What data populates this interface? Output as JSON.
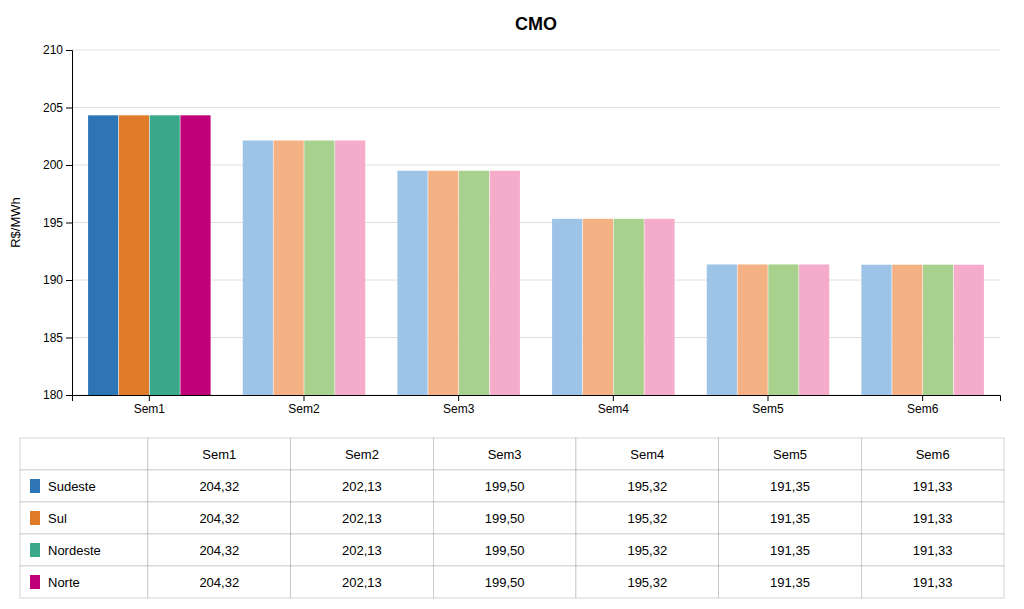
{
  "chart_data": {
    "type": "bar",
    "title": "CMO",
    "ylabel": "R$/MWh",
    "categories": [
      "Sem1",
      "Sem2",
      "Sem3",
      "Sem4",
      "Sem5",
      "Sem6"
    ],
    "series": [
      {
        "name": "Sudeste",
        "color": "#2E75B6",
        "colors": [
          "#2E75B6",
          "#9DC3E6",
          "#9DC3E6",
          "#9DC3E6",
          "#9DC3E6",
          "#9DC3E6"
        ],
        "values": [
          204.32,
          202.13,
          199.5,
          195.32,
          191.35,
          191.33
        ],
        "value_labels": [
          "204,32",
          "202,13",
          "199,50",
          "195,32",
          "191,35",
          "191,33"
        ]
      },
      {
        "name": "Sul",
        "color": "#E07B2A",
        "colors": [
          "#E07B2A",
          "#F4B183",
          "#F4B183",
          "#F4B183",
          "#F4B183",
          "#F4B183"
        ],
        "values": [
          204.32,
          202.13,
          199.5,
          195.32,
          191.35,
          191.33
        ],
        "value_labels": [
          "204,32",
          "202,13",
          "199,50",
          "195,32",
          "191,35",
          "191,33"
        ]
      },
      {
        "name": "Nordeste",
        "color": "#3AA88A",
        "colors": [
          "#3AA88A",
          "#A9D18E",
          "#A9D18E",
          "#A9D18E",
          "#A9D18E",
          "#A9D18E"
        ],
        "values": [
          204.32,
          202.13,
          199.5,
          195.32,
          191.35,
          191.33
        ],
        "value_labels": [
          "204,32",
          "202,13",
          "199,50",
          "195,32",
          "191,35",
          "191,33"
        ]
      },
      {
        "name": "Norte",
        "color": "#C00078",
        "colors": [
          "#C00078",
          "#F4ACCA",
          "#F4ACCA",
          "#F4ACCA",
          "#F4ACCA",
          "#F4ACCA"
        ],
        "values": [
          204.32,
          202.13,
          199.5,
          195.32,
          191.35,
          191.33
        ],
        "value_labels": [
          "204,32",
          "202,13",
          "199,50",
          "195,32",
          "191,35",
          "191,33"
        ]
      }
    ],
    "ylim": [
      180,
      210
    ],
    "yticks": [
      180,
      185,
      190,
      195,
      200,
      205,
      210
    ],
    "grid": true
  }
}
